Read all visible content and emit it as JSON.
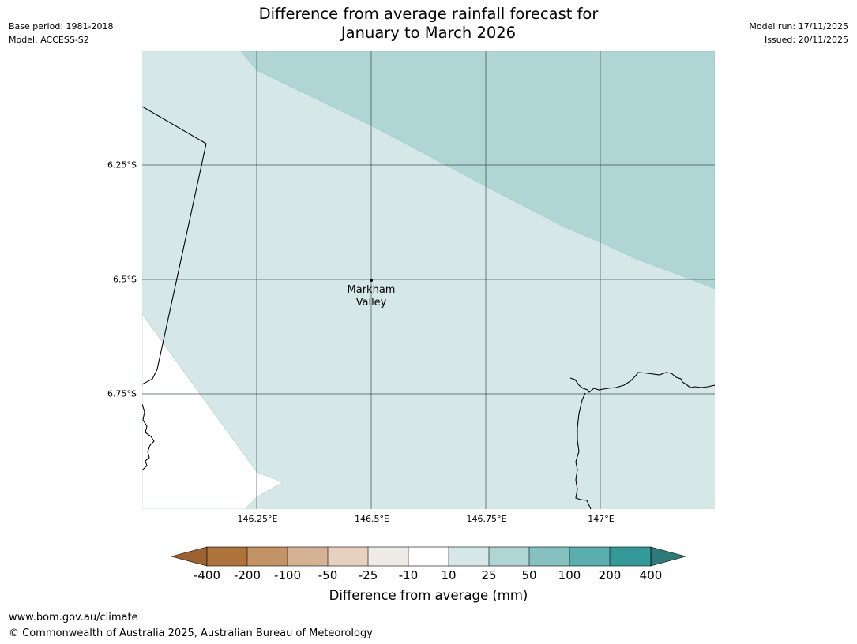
{
  "meta": {
    "base_period": "Base period: 1981-2018",
    "model": "Model: ACCESS-S2",
    "model_run": "Model run: 17/11/2025",
    "issued": "Issued: 20/11/2025"
  },
  "title": {
    "line1": "Difference from average rainfall forecast for",
    "line2": "January to March 2026"
  },
  "map": {
    "lat_labels": [
      "6.25°S",
      "6.5°S",
      "6.75°S"
    ],
    "lon_labels": [
      "146.25°E",
      "146.5°E",
      "146.75°E",
      "147°E"
    ],
    "place": {
      "line1": "Markham",
      "line2": "Valley"
    }
  },
  "colorbar": {
    "label": "Difference from average (mm)",
    "ticks": [
      "-400",
      "-200",
      "-100",
      "-50",
      "-25",
      "-10",
      "10",
      "25",
      "50",
      "100",
      "200",
      "400"
    ],
    "colors": {
      "lt_-400": "#9c6331",
      "-400_-200": "#ae733b",
      "-200_-100": "#c39366",
      "-100_-50": "#d5b293",
      "-50_-25": "#e6d1be",
      "-25_-10": "#efebe7",
      "-10_10": "#ffffff",
      "10_25": "#d5e8e7",
      "25_50": "#afd5d5",
      "50_100": "#85c1c0",
      "100_200": "#5baeae",
      "200_400": "#339a99",
      "gt_400": "#2c7a79"
    }
  },
  "footer": {
    "url": "www.bom.gov.au/climate",
    "copyright": "© Commonwealth of Australia 2025, Australian Bureau of Meteorology"
  }
}
